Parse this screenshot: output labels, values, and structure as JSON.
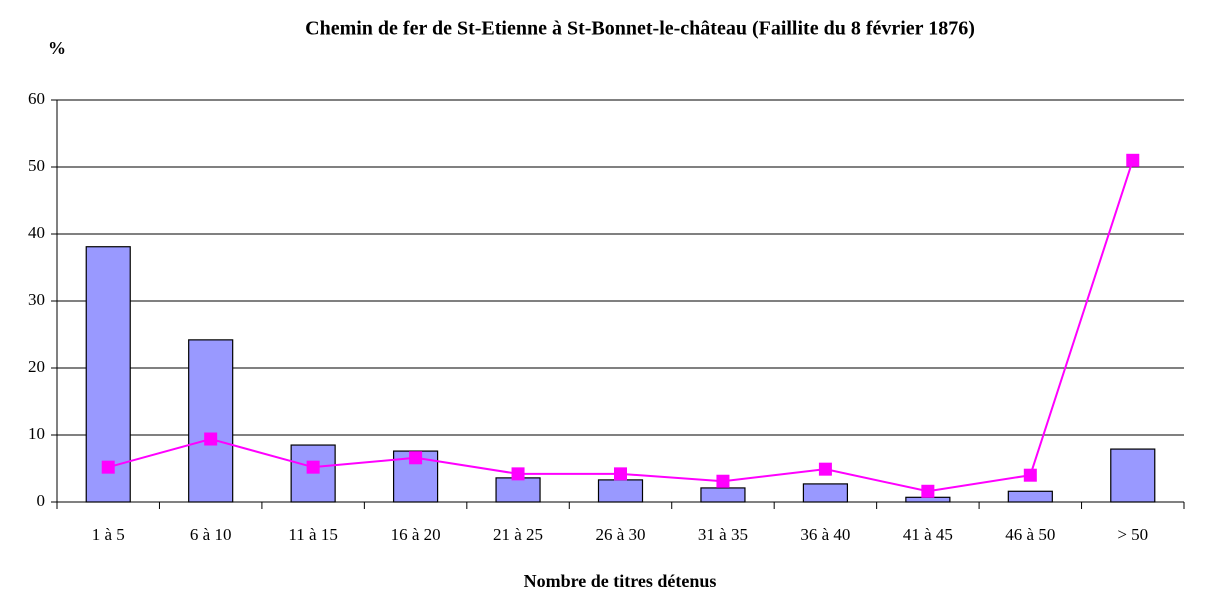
{
  "chart_data": {
    "type": "bar",
    "title": "Chemin de fer de St-Etienne à St-Bonnet-le-château (Faillite du 8 février 1876)",
    "y_label": "%",
    "x_label": "Nombre de titres détenus",
    "categories": [
      "1 à 5",
      "6 à 10",
      "11 à 15",
      "16 à 20",
      "21 à 25",
      "26 à 30",
      "31 à 35",
      "36 à 40",
      "41 à 45",
      "46 à 50",
      "> 50"
    ],
    "series": [
      {
        "type": "bar",
        "color": "#9999ff",
        "values": [
          38.1,
          24.2,
          8.5,
          7.6,
          3.6,
          3.3,
          2.1,
          2.7,
          0.7,
          1.6,
          7.9
        ]
      },
      {
        "type": "line",
        "color": "#ff00ff",
        "values": [
          5.2,
          9.4,
          5.2,
          6.6,
          4.2,
          4.2,
          3.1,
          4.9,
          1.6,
          4.0,
          51.0
        ]
      }
    ],
    "ylim": [
      0,
      60
    ],
    "yticks": [
      0,
      10,
      20,
      30,
      40,
      50,
      60
    ],
    "grid": true
  }
}
